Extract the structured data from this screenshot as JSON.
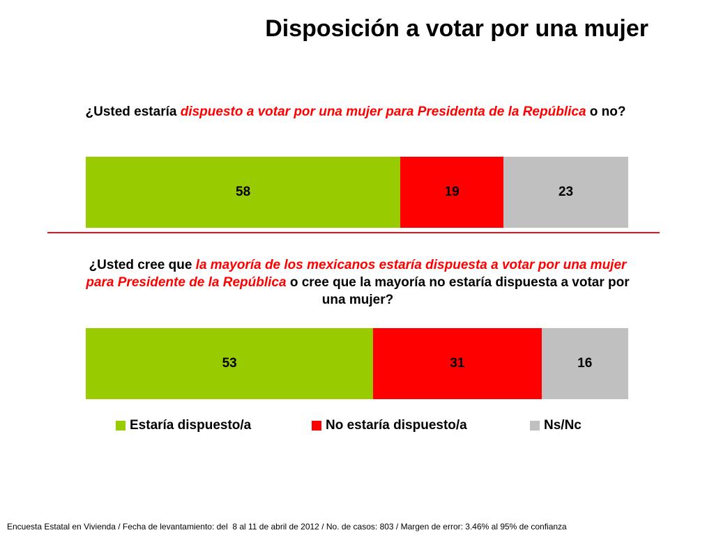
{
  "title": "Disposición a votar por una mujer",
  "colors": {
    "dispuesto": "#99cc00",
    "no_dispuesto": "#ff0000",
    "nsnc": "#c0c0c0",
    "divider": "#e8101a"
  },
  "chart_data": [
    {
      "type": "bar",
      "stacked": true,
      "orientation": "horizontal",
      "question": {
        "pre": "¿Usted estaría ",
        "highlight": "dispuesto a votar por una mujer para Presidenta de la República",
        "post": " o no?"
      },
      "series": [
        {
          "name": "Estaría dispuesto/a",
          "values": [
            58
          ]
        },
        {
          "name": "No estaría dispuesto/a",
          "values": [
            19
          ]
        },
        {
          "name": "Ns/Nc",
          "values": [
            23
          ]
        }
      ]
    },
    {
      "type": "bar",
      "stacked": true,
      "orientation": "horizontal",
      "question": {
        "pre": "¿Usted cree que ",
        "highlight": "la mayoría de los mexicanos estaría dispuesta a votar por una mujer para Presidente de la República",
        "post": " o cree que la mayoría no estaría dispuesta a votar por una mujer?"
      },
      "series": [
        {
          "name": "Estaría dispuesto/a",
          "values": [
            53
          ]
        },
        {
          "name": "No estaría dispuesto/a",
          "values": [
            31
          ]
        },
        {
          "name": "Ns/Nc",
          "values": [
            16
          ]
        }
      ]
    }
  ],
  "legend": [
    {
      "label": "Estaría dispuesto/a",
      "color_key": "dispuesto"
    },
    {
      "label": "No estaría dispuesto/a",
      "color_key": "no_dispuesto"
    },
    {
      "label": "Ns/Nc",
      "color_key": "nsnc"
    }
  ],
  "footer": "Encuesta Estatal en Vivienda / Fecha de levantamiento: del  8 al 11 de abril de 2012 / No. de casos: 803 / Margen de error: 3.46% al 95% de confianza"
}
